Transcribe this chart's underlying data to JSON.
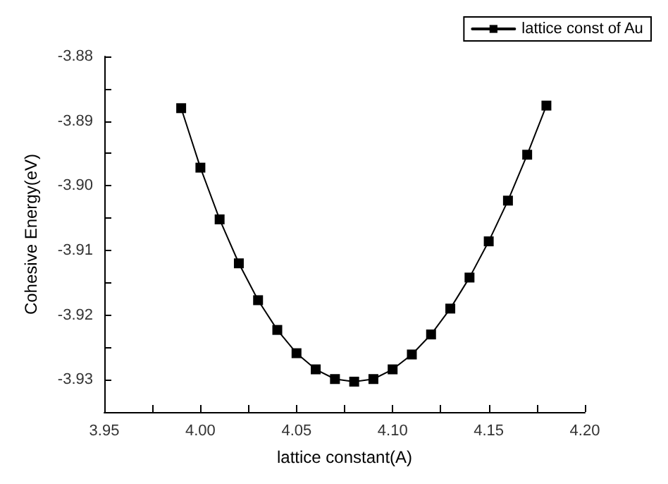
{
  "chart_data": {
    "type": "line",
    "xlabel": "lattice constant(A)",
    "ylabel": "Cohesive Energy(eV)",
    "x": [
      3.99,
      4.0,
      4.01,
      4.02,
      4.03,
      4.04,
      4.05,
      4.06,
      4.07,
      4.08,
      4.09,
      4.1,
      4.11,
      4.12,
      4.13,
      4.14,
      4.15,
      4.16,
      4.17,
      4.18
    ],
    "series": [
      {
        "name": "lattice const of Au",
        "color": "#000000",
        "values": [
          -3.888,
          -3.8972,
          -3.9052,
          -3.912,
          -3.9177,
          -3.9223,
          -3.9259,
          -3.9284,
          -3.9299,
          -3.9303,
          -3.9299,
          -3.9284,
          -3.9261,
          -3.923,
          -3.919,
          -3.9142,
          -3.9086,
          -3.9023,
          -3.8952,
          -3.8876
        ]
      }
    ],
    "xlim": [
      3.95,
      4.2
    ],
    "xticks": [
      {
        "value": 3.95,
        "label": "3.95"
      },
      {
        "value": 3.975,
        "label": null
      },
      {
        "value": 4.0,
        "label": "4.00"
      },
      {
        "value": 4.025,
        "label": null
      },
      {
        "value": 4.05,
        "label": "4.05"
      },
      {
        "value": 4.075,
        "label": null
      },
      {
        "value": 4.1,
        "label": "4.10"
      },
      {
        "value": 4.125,
        "label": null
      },
      {
        "value": 4.15,
        "label": "4.15"
      },
      {
        "value": 4.175,
        "label": null
      },
      {
        "value": 4.2,
        "label": "4.20"
      }
    ],
    "ylim": [
      -3.935,
      -3.88
    ],
    "yticks": [
      {
        "value": -3.935,
        "label": null
      },
      {
        "value": -3.93,
        "label": "-3.93"
      },
      {
        "value": -3.925,
        "label": null
      },
      {
        "value": -3.92,
        "label": "-3.92"
      },
      {
        "value": -3.915,
        "label": null
      },
      {
        "value": -3.91,
        "label": "-3.91"
      },
      {
        "value": -3.905,
        "label": null
      },
      {
        "value": -3.9,
        "label": "-3.90"
      },
      {
        "value": -3.895,
        "label": null
      },
      {
        "value": -3.89,
        "label": "-3.89"
      },
      {
        "value": -3.885,
        "label": null
      },
      {
        "value": -3.88,
        "label": "-3.88"
      }
    ],
    "grid": false,
    "legend": "top right",
    "marker": "square",
    "line_style": "solid"
  }
}
